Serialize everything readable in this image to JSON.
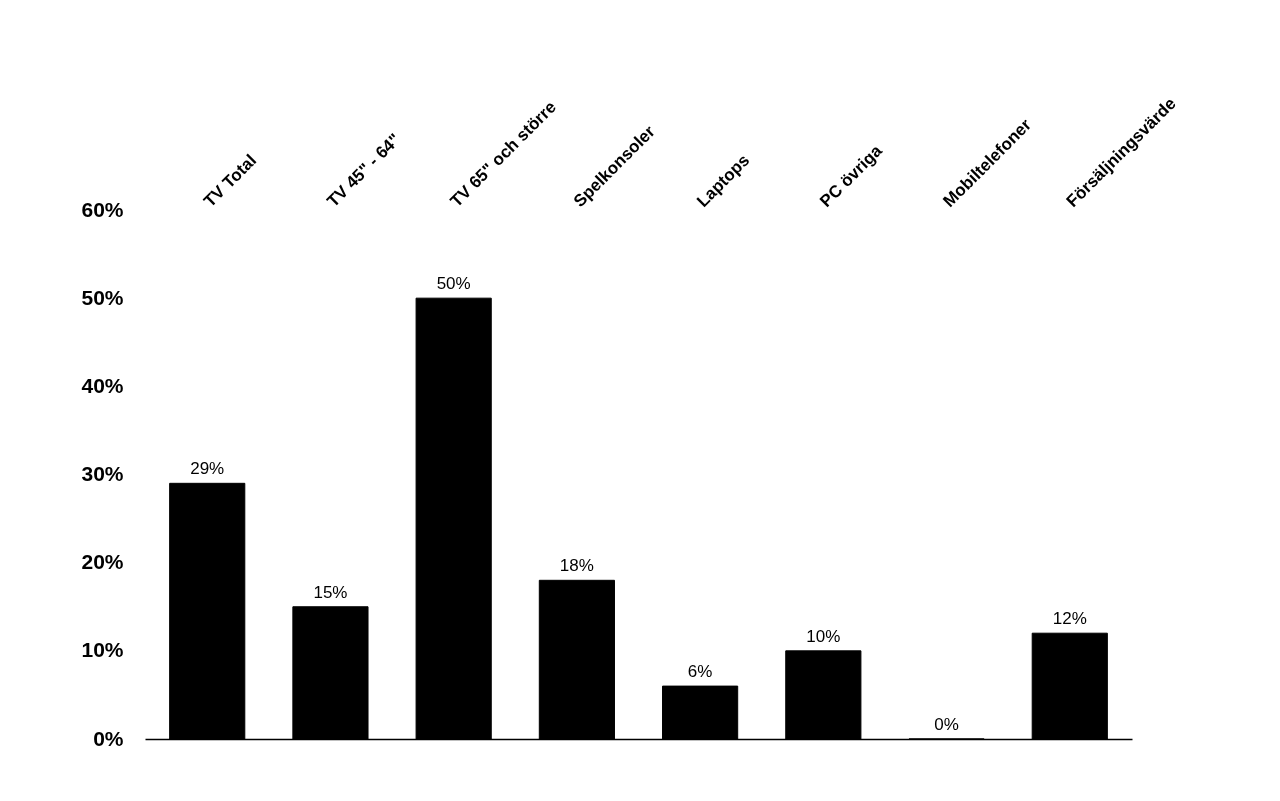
{
  "chart_data": {
    "type": "bar",
    "categories": [
      "TV Total",
      "TV 45\" - 64\"",
      "TV 65\" och större",
      "Spelkonsoler",
      "Laptops",
      "PC övriga",
      "Mobiltelefoner",
      "Försäljningsvärde"
    ],
    "values": [
      29,
      15,
      50,
      18,
      6,
      10,
      0,
      12
    ],
    "value_labels": [
      "29%",
      "15%",
      "50%",
      "18%",
      "6%",
      "10%",
      "0%",
      "12%"
    ],
    "color": "#000000",
    "ylim": [
      0,
      60
    ],
    "yticks": [
      {
        "value": 0,
        "label": "0%"
      },
      {
        "value": 10,
        "label": "10%"
      },
      {
        "value": 20,
        "label": "20%"
      },
      {
        "value": 30,
        "label": "30%"
      },
      {
        "value": 40,
        "label": "40%"
      },
      {
        "value": 50,
        "label": "50%"
      },
      {
        "value": 60,
        "label": "60%"
      }
    ],
    "grid": false
  }
}
